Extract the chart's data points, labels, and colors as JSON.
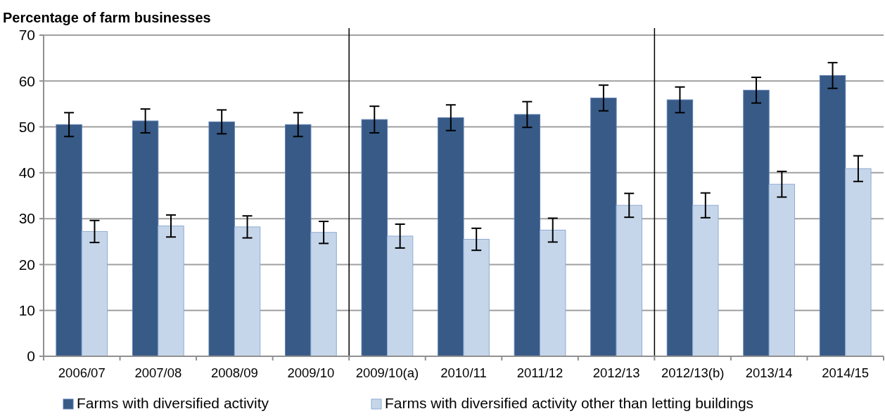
{
  "chart_data": {
    "type": "bar",
    "ylabel": "Percentage of farm businesses",
    "categories": [
      "2006/07",
      "2007/08",
      "2008/09",
      "2009/10",
      "2009/10(a)",
      "2010/11",
      "2011/12",
      "2012/13",
      "2012/13(b)",
      "2013/14",
      "2014/15"
    ],
    "series": [
      {
        "name": "Farms with diversified activity",
        "color": "#375a87",
        "values": [
          50.5,
          51.3,
          51.1,
          50.5,
          51.6,
          52.0,
          52.7,
          56.3,
          55.9,
          58.0,
          61.2
        ],
        "errors": [
          2.6,
          2.6,
          2.6,
          2.6,
          2.9,
          2.8,
          2.8,
          2.8,
          2.8,
          2.8,
          2.8
        ]
      },
      {
        "name": "Farms with diversified activity other than letting buildings",
        "color": "#c6d6ea",
        "values": [
          27.2,
          28.4,
          28.2,
          27.0,
          26.2,
          25.5,
          27.5,
          32.9,
          32.9,
          37.5,
          40.9
        ],
        "errors": [
          2.4,
          2.4,
          2.4,
          2.4,
          2.6,
          2.4,
          2.6,
          2.6,
          2.7,
          2.8,
          2.8
        ]
      }
    ],
    "ylim": [
      0,
      70
    ],
    "yticks": [
      0,
      10,
      20,
      30,
      40,
      50,
      60,
      70
    ],
    "grid": "y",
    "legend": "bottom"
  }
}
